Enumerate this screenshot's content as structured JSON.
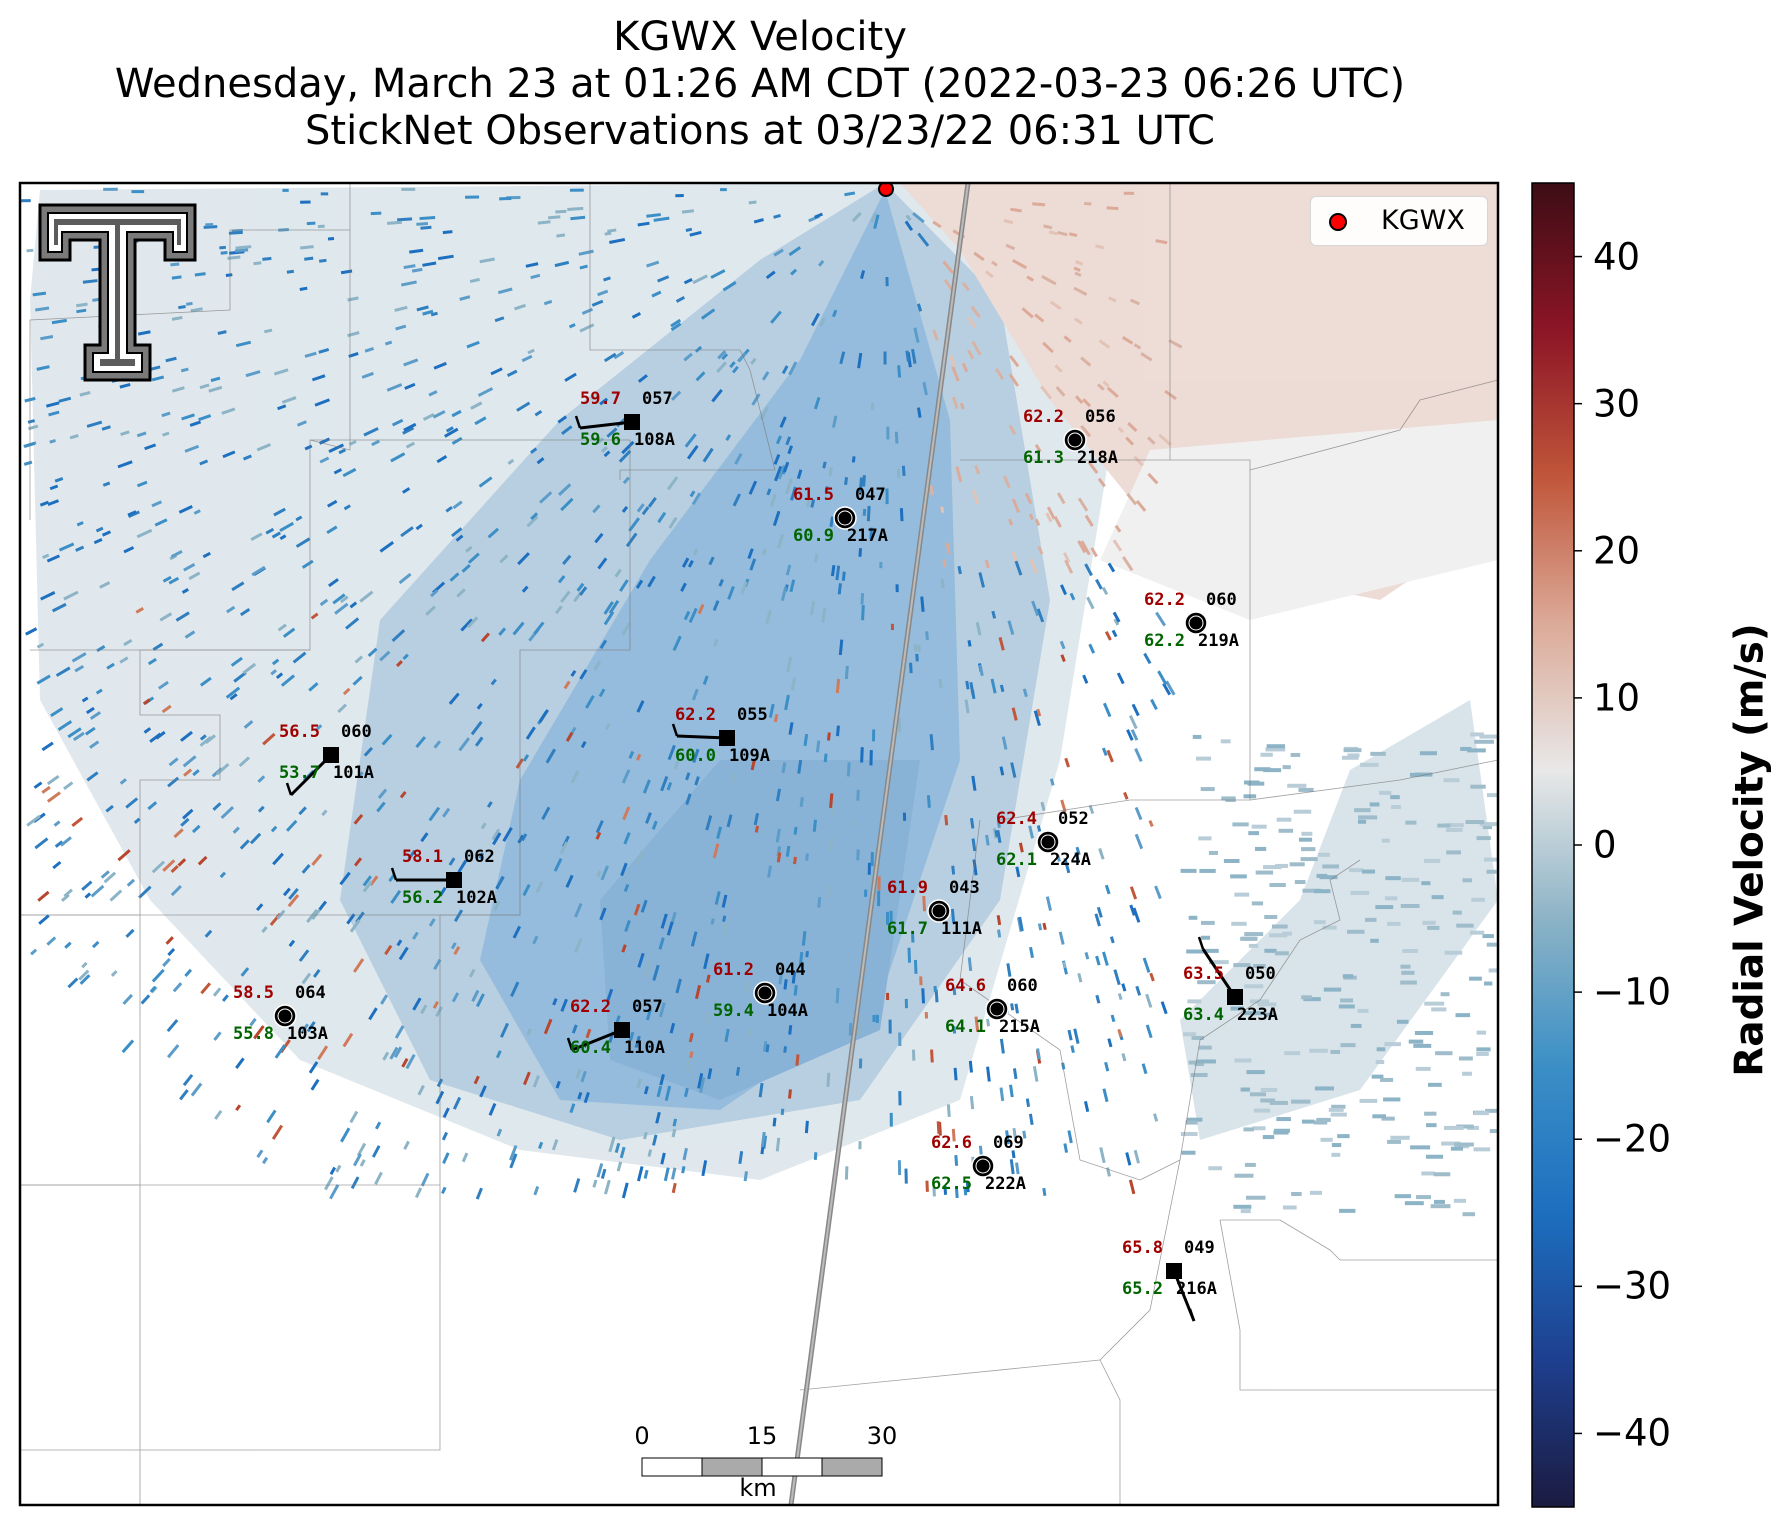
{
  "title": {
    "line1": "KGWX Velocity",
    "line2": "Wednesday, March 23 at 01:26 AM CDT (2022-03-23 06:26 UTC)",
    "line3": "StickNet Observations at 03/23/22 06:31 UTC"
  },
  "legend": {
    "label": "KGWX",
    "marker_color": "#ff0000"
  },
  "logo": {
    "name": "texas-tech-double-t-logo"
  },
  "colorbar": {
    "label": "Radial Velocity (m/s)",
    "ticks": [
      "40",
      "30",
      "20",
      "10",
      "0",
      "−10",
      "−20",
      "−30",
      "−40"
    ],
    "tick_values": [
      40,
      30,
      20,
      10,
      0,
      -10,
      -20,
      -30,
      -40
    ],
    "vmin": -45,
    "vmax": 45,
    "colors": [
      "#1b1b40",
      "#1e3f8f",
      "#1d6fbf",
      "#3b8fc6",
      "#8cb3c6",
      "#e8e8e8",
      "#dcaa98",
      "#c0563a",
      "#8c1526",
      "#3d0d15"
    ]
  },
  "scale_bar": {
    "labels": [
      "0",
      "15",
      "30"
    ],
    "unit": "km"
  },
  "stations": [
    {
      "id": "108A",
      "temp": "59.7",
      "dew": "59.6",
      "dir": "057",
      "shape": "square"
    },
    {
      "id": "218A",
      "temp": "62.2",
      "dew": "61.3",
      "dir": "056",
      "shape": "circle"
    },
    {
      "id": "217A",
      "temp": "61.5",
      "dew": "60.9",
      "dir": "047",
      "shape": "circle"
    },
    {
      "id": "219A",
      "temp": "62.2",
      "dew": "62.2",
      "dir": "060",
      "shape": "circle"
    },
    {
      "id": "109A",
      "temp": "62.2",
      "dew": "60.0",
      "dir": "055",
      "shape": "square"
    },
    {
      "id": "101A",
      "temp": "56.5",
      "dew": "53.7",
      "dir": "060",
      "shape": "square"
    },
    {
      "id": "224A",
      "temp": "62.4",
      "dew": "62.1",
      "dir": "052",
      "shape": "circle"
    },
    {
      "id": "102A",
      "temp": "58.1",
      "dew": "56.2",
      "dir": "062",
      "shape": "square"
    },
    {
      "id": "111A",
      "temp": "61.9",
      "dew": "61.7",
      "dir": "043",
      "shape": "circle"
    },
    {
      "id": "223A",
      "temp": "63.5",
      "dew": "63.4",
      "dir": "050",
      "shape": "square"
    },
    {
      "id": "104A",
      "temp": "61.2",
      "dew": "59.4",
      "dir": "044",
      "shape": "circle"
    },
    {
      "id": "215A",
      "temp": "64.6",
      "dew": "64.1",
      "dir": "060",
      "shape": "circle"
    },
    {
      "id": "103A",
      "temp": "58.5",
      "dew": "55.8",
      "dir": "064",
      "shape": "circle"
    },
    {
      "id": "110A",
      "temp": "62.2",
      "dew": "60.4",
      "dir": "057",
      "shape": "square"
    },
    {
      "id": "222A",
      "temp": "62.6",
      "dew": "62.5",
      "dir": "069",
      "shape": "circle"
    },
    {
      "id": "216A",
      "temp": "65.8",
      "dew": "65.2",
      "dir": "049",
      "shape": "square"
    }
  ]
}
